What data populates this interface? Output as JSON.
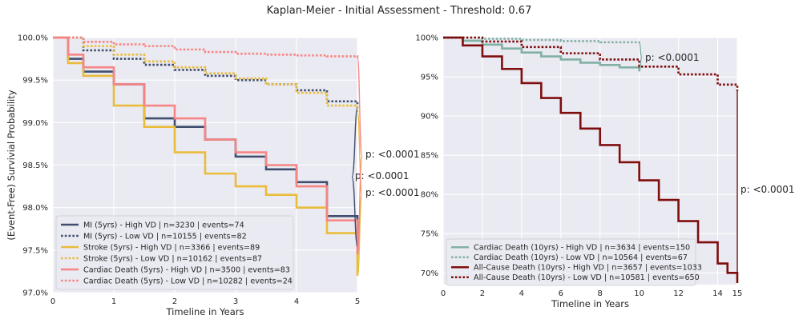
{
  "title": "Kaplan-Meier - Initial Assessment - Threshold: 0.67",
  "chart_data": [
    {
      "type": "line",
      "subtype": "kaplan-meier step",
      "xlabel": "Timeline in Years",
      "ylabel": "(Event-Free) Survivial Probability",
      "xlim": [
        0,
        5
      ],
      "ylim": [
        97.0,
        100.0
      ],
      "xticks": [
        0,
        1,
        2,
        3,
        4,
        5
      ],
      "xtick_labels": [
        "0",
        "1",
        "2",
        "3",
        "4",
        "5"
      ],
      "yticks": [
        97.0,
        97.5,
        98.0,
        98.5,
        99.0,
        99.5,
        100.0
      ],
      "ytick_labels": [
        "97.0%",
        "97.5%",
        "98.0%",
        "98.5%",
        "99.0%",
        "99.5%",
        "100.0%"
      ],
      "grid": true,
      "legend_position": "lower-left",
      "series": [
        {
          "name": "MI (5yrs) - High VD | n=3230 | events=74",
          "color": "#3f4e6e",
          "style": "solid",
          "x": [
            0,
            0.25,
            0.5,
            1.0,
            1.5,
            2.0,
            2.5,
            3.0,
            3.5,
            4.0,
            4.5,
            5.0
          ],
          "y": [
            100.0,
            99.75,
            99.6,
            99.45,
            99.05,
            98.95,
            98.8,
            98.6,
            98.45,
            98.3,
            97.9,
            97.55
          ]
        },
        {
          "name": "MI (5yrs) - Low VD | n=10155 | events=82",
          "color": "#3f4e6e",
          "style": "dotted",
          "x": [
            0,
            0.5,
            1.0,
            1.5,
            2.0,
            2.5,
            3.0,
            3.5,
            4.0,
            4.5,
            5.0
          ],
          "y": [
            100.0,
            99.85,
            99.75,
            99.68,
            99.62,
            99.55,
            99.5,
            99.45,
            99.38,
            99.25,
            99.17
          ]
        },
        {
          "name": "Stroke (5yrs) - High VD | n=3366 | events=89",
          "color": "#e9bc3c",
          "style": "solid",
          "x": [
            0,
            0.25,
            0.5,
            1.0,
            1.5,
            2.0,
            2.5,
            3.0,
            3.5,
            4.0,
            4.5,
            5.0
          ],
          "y": [
            100.0,
            99.7,
            99.55,
            99.2,
            98.95,
            98.65,
            98.4,
            98.25,
            98.15,
            98.0,
            97.7,
            97.2
          ]
        },
        {
          "name": "Stroke (5yrs) - Low VD | n=10162 | events=87",
          "color": "#e9bc3c",
          "style": "dotted",
          "x": [
            0,
            0.5,
            1.0,
            1.5,
            2.0,
            2.5,
            3.0,
            3.5,
            4.0,
            4.5,
            5.0
          ],
          "y": [
            100.0,
            99.9,
            99.8,
            99.72,
            99.65,
            99.58,
            99.52,
            99.45,
            99.35,
            99.2,
            99.12
          ]
        },
        {
          "name": "Cardiac Death (5yrs) - High VD | n=3500 | events=83",
          "color": "#f78585",
          "style": "solid",
          "x": [
            0,
            0.25,
            0.5,
            1.0,
            1.5,
            2.0,
            2.5,
            3.0,
            3.5,
            4.0,
            4.5,
            5.0
          ],
          "y": [
            100.0,
            99.8,
            99.65,
            99.45,
            99.2,
            99.05,
            98.8,
            98.65,
            98.5,
            98.25,
            97.85,
            97.45
          ]
        },
        {
          "name": "Cardiac Death (5yrs) - Low VD | n=10282 | events=24",
          "color": "#f78585",
          "style": "dotted",
          "x": [
            0,
            0.5,
            1.0,
            1.5,
            2.0,
            2.5,
            3.0,
            3.5,
            4.0,
            4.5,
            5.0
          ],
          "y": [
            100.0,
            99.95,
            99.92,
            99.9,
            99.86,
            99.83,
            99.81,
            99.8,
            99.79,
            99.78,
            99.76
          ]
        }
      ],
      "annotations": [
        {
          "text": "p: <0.0001",
          "x": 5.0,
          "y": 98.35,
          "pair": "MI"
        },
        {
          "text": "p: <0.0001",
          "x": 5.0,
          "y": 98.15,
          "pair": "Stroke"
        },
        {
          "text": "p: <0.0001",
          "x": 5.0,
          "y": 98.6,
          "pair": "Cardiac Death"
        }
      ]
    },
    {
      "type": "line",
      "subtype": "kaplan-meier step",
      "xlabel": "Timeline in Years",
      "ylabel": "",
      "xlim": [
        0,
        15
      ],
      "ylim": [
        68.5,
        100.0
      ],
      "xticks": [
        0,
        2,
        4,
        6,
        8,
        10,
        12,
        14,
        15
      ],
      "xtick_labels": [
        "0",
        "2",
        "4",
        "6",
        "8",
        "10",
        "12",
        "14",
        "15"
      ],
      "yticks": [
        70,
        75,
        80,
        85,
        90,
        95,
        100
      ],
      "ytick_labels": [
        "70%",
        "75%",
        "80%",
        "85%",
        "90%",
        "95%",
        "100%"
      ],
      "grid": true,
      "legend_position": "lower-left",
      "series": [
        {
          "name": "Cardiac Death (10yrs) - High VD | n=3634 | events=150",
          "color": "#82b0a4",
          "style": "solid",
          "x": [
            0,
            1,
            2,
            3,
            4,
            5,
            6,
            7,
            8,
            9,
            10
          ],
          "y": [
            100.0,
            99.6,
            99.1,
            98.6,
            98.1,
            97.6,
            97.2,
            96.8,
            96.5,
            96.2,
            95.7
          ]
        },
        {
          "name": "Cardiac Death (10yrs) - Low VD | n=10564 | events=67",
          "color": "#82b0a4",
          "style": "dotted",
          "x": [
            0,
            2,
            4,
            6,
            8,
            10
          ],
          "y": [
            100.0,
            99.85,
            99.7,
            99.55,
            99.4,
            99.3
          ]
        },
        {
          "name": "All-Cause Death (10yrs) - High VD | n=3657 | events=1033",
          "color": "#7f0d0d",
          "style": "solid",
          "x": [
            0,
            1,
            2,
            3,
            4,
            5,
            6,
            7,
            8,
            9,
            10,
            11,
            12,
            13,
            14,
            14.5,
            15
          ],
          "y": [
            100.0,
            99.0,
            97.6,
            96.0,
            94.2,
            92.3,
            90.4,
            88.4,
            86.3,
            84.1,
            81.8,
            79.3,
            76.6,
            73.9,
            71.2,
            70.0,
            68.7
          ]
        },
        {
          "name": "All-Cause Death (10yrs) - Low VD | n=10581 | events=650",
          "color": "#7f0d0d",
          "style": "dotted",
          "x": [
            0,
            2,
            4,
            6,
            8,
            10,
            12,
            14,
            15
          ],
          "y": [
            100.0,
            99.5,
            98.8,
            98.0,
            97.2,
            96.3,
            95.3,
            94.0,
            93.2
          ]
        }
      ],
      "annotations": [
        {
          "text": "p: <0.0001",
          "x": 10.0,
          "y": 97.5,
          "pair": "Cardiac Death"
        },
        {
          "text": "p: <0.0001",
          "x": 15.0,
          "y": 81.0,
          "pair": "All-Cause Death"
        }
      ]
    }
  ]
}
